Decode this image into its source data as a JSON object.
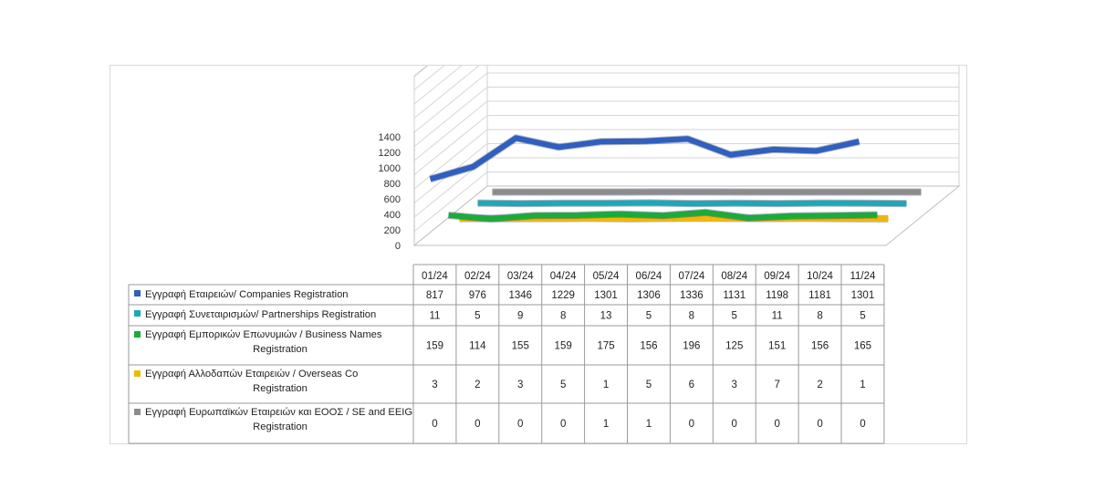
{
  "chart_data": {
    "type": "line",
    "style": "3d-ribbon-with-data-table",
    "categories": [
      "01/24",
      "02/24",
      "03/24",
      "04/24",
      "05/24",
      "06/24",
      "07/24",
      "08/24",
      "09/24",
      "10/24",
      "11/24"
    ],
    "y_ticks": [
      "0",
      "200",
      "400",
      "600",
      "800",
      "1000",
      "1200",
      "1400"
    ],
    "ylim": [
      0,
      1400
    ],
    "grid": true,
    "legend": "data-table-left",
    "series": [
      {
        "name": "Εγγραφή  Εταιρειών/ Companies Registration",
        "color": "#2f5fbf",
        "values": [
          817,
          976,
          1346,
          1229,
          1301,
          1306,
          1336,
          1131,
          1198,
          1181,
          1301
        ]
      },
      {
        "name": "Εγγραφή  Συνεταιρισμών/ Partnerships Registration",
        "color": "#1fa7b8",
        "values": [
          11,
          5,
          9,
          8,
          13,
          5,
          8,
          5,
          11,
          8,
          5
        ]
      },
      {
        "name": "Εγγραφή  Εμπορικών Επωνυμιών  / Business Names Registration",
        "color": "#1aab3c",
        "values": [
          159,
          114,
          155,
          159,
          175,
          156,
          196,
          125,
          151,
          156,
          165
        ]
      },
      {
        "name": "Εγγραφή  Αλλοδαπών  Εταιρειών  / Overseas Co Registration",
        "color": "#f2b800",
        "values": [
          3,
          2,
          3,
          5,
          1,
          5,
          6,
          3,
          7,
          2,
          1
        ]
      },
      {
        "name": "Εγγραφή  Ευρωπαϊκών Εταιρειών και ΕΟΟΣ / SE and EEIG Registration",
        "color": "#8c8c8c",
        "values": [
          0,
          0,
          0,
          0,
          1,
          1,
          0,
          0,
          0,
          0,
          0
        ]
      }
    ]
  }
}
